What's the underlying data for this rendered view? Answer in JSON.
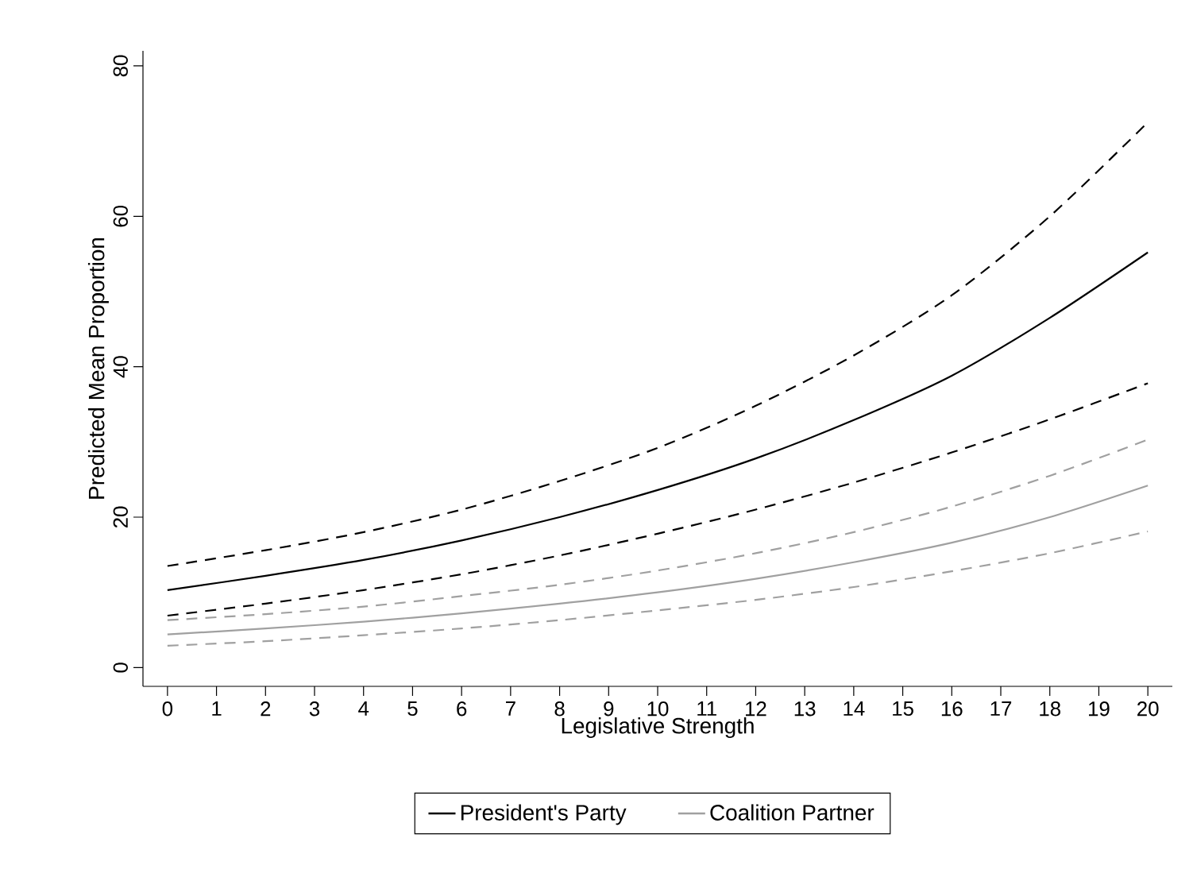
{
  "chart_data": {
    "type": "line",
    "xlabel": "Legislative Strength",
    "ylabel": "Predicted Mean Proportion",
    "x": [
      0,
      2,
      4,
      6,
      8,
      10,
      12,
      14,
      16,
      18,
      20
    ],
    "series": [
      {
        "color": "#000000",
        "line_style": "dashed",
        "values": [
          13.5,
          15.6,
          18.0,
          21.0,
          24.8,
          29.2,
          34.8,
          41.5,
          49.5,
          60.0,
          72.5
        ]
      },
      {
        "name": "President's Party",
        "color": "#000000",
        "line_style": "solid",
        "values": [
          10.3,
          12.2,
          14.3,
          16.9,
          20.0,
          23.6,
          27.8,
          32.9,
          38.8,
          46.5,
          55.2
        ]
      },
      {
        "color": "#000000",
        "line_style": "dashed",
        "values": [
          6.9,
          8.5,
          10.3,
          12.4,
          14.9,
          17.8,
          21.0,
          24.6,
          28.6,
          33.0,
          37.8
        ]
      },
      {
        "color": "#a0a0a0",
        "line_style": "dashed",
        "values": [
          6.3,
          7.1,
          8.1,
          9.5,
          11.0,
          12.9,
          15.2,
          18.0,
          21.4,
          25.5,
          30.3
        ]
      },
      {
        "name": "Coalition Partner",
        "color": "#a0a0a0",
        "line_style": "solid",
        "values": [
          4.4,
          5.2,
          6.1,
          7.2,
          8.5,
          10.0,
          11.8,
          14.0,
          16.6,
          20.0,
          24.2
        ]
      },
      {
        "color": "#a0a0a0",
        "line_style": "dashed",
        "values": [
          2.9,
          3.5,
          4.3,
          5.2,
          6.3,
          7.6,
          9.0,
          10.7,
          12.8,
          15.2,
          18.1
        ]
      }
    ],
    "xlim": [
      -0.5,
      20.5
    ],
    "ylim": [
      -2.5,
      82
    ],
    "xticks": [
      0,
      1,
      2,
      3,
      4,
      5,
      6,
      7,
      8,
      9,
      10,
      11,
      12,
      13,
      14,
      15,
      16,
      17,
      18,
      19,
      20
    ],
    "yticks": [
      0,
      20,
      40,
      60,
      80
    ],
    "grid": false,
    "legend": "bottom",
    "marker": "none"
  }
}
